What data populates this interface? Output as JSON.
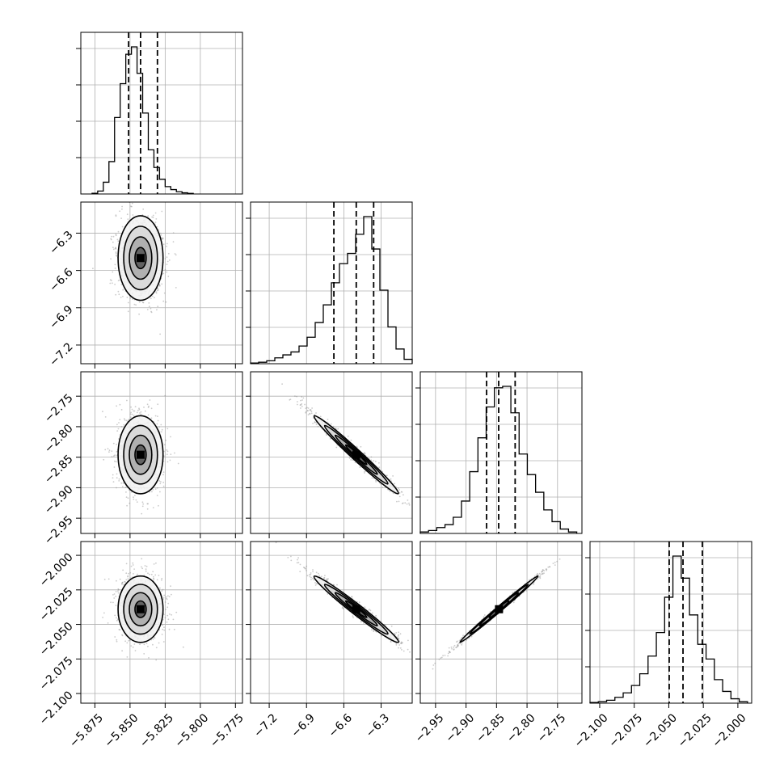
{
  "chart_data": {
    "type": "corner",
    "grid": true,
    "colors": {
      "line": "#000000",
      "grid": "#b0b0b0",
      "scatter": "#8c8c8c",
      "background": "#ffffff"
    },
    "title": "",
    "variables": [
      {
        "range": [
          -5.885,
          -5.77
        ],
        "ticks": [
          -5.875,
          -5.85,
          -5.825,
          -5.8,
          -5.775
        ],
        "tick_labels": [
          "−5.875",
          "−5.850",
          "−5.825",
          "−5.800",
          "−5.775"
        ],
        "quantiles": [
          -5.851,
          -5.8425,
          -5.8305
        ],
        "hist": {
          "edges": [
            -5.877,
            -5.873,
            -5.869,
            -5.865,
            -5.861,
            -5.857,
            -5.853,
            -5.849,
            -5.845,
            -5.841,
            -5.837,
            -5.833,
            -5.829,
            -5.825,
            -5.821,
            -5.817,
            -5.813,
            -5.809,
            -5.805
          ],
          "heights": [
            0.005,
            0.02,
            0.08,
            0.22,
            0.52,
            0.75,
            0.95,
            1.0,
            0.82,
            0.55,
            0.3,
            0.18,
            0.1,
            0.05,
            0.03,
            0.015,
            0.008,
            0.004
          ]
        }
      },
      {
        "range": [
          -7.35,
          -6.05
        ],
        "ticks": [
          -7.2,
          -6.9,
          -6.6,
          -6.3
        ],
        "tick_labels": [
          "−7.2",
          "−6.9",
          "−6.6",
          "−6.3"
        ],
        "quantiles": [
          -6.68,
          -6.5,
          -6.36
        ],
        "hist": {
          "edges": [
            -7.35,
            -7.285,
            -7.22,
            -7.155,
            -7.09,
            -7.025,
            -6.96,
            -6.895,
            -6.83,
            -6.765,
            -6.7,
            -6.635,
            -6.57,
            -6.505,
            -6.44,
            -6.375,
            -6.31,
            -6.245,
            -6.18,
            -6.115,
            -6.05
          ],
          "heights": [
            0.005,
            0.01,
            0.02,
            0.04,
            0.06,
            0.08,
            0.12,
            0.18,
            0.28,
            0.4,
            0.55,
            0.68,
            0.75,
            0.88,
            1.0,
            0.78,
            0.5,
            0.25,
            0.1,
            0.03
          ]
        }
      },
      {
        "range": [
          -2.975,
          -2.71
        ],
        "ticks": [
          -2.95,
          -2.9,
          -2.85,
          -2.8,
          -2.75
        ],
        "tick_labels": [
          "−2.95",
          "−2.90",
          "−2.85",
          "−2.80",
          "−2.75"
        ],
        "quantiles": [
          -2.8663,
          -2.8465,
          -2.8195
        ],
        "hist": {
          "edges": [
            -2.975,
            -2.9615,
            -2.948,
            -2.9345,
            -2.921,
            -2.9075,
            -2.894,
            -2.8805,
            -2.867,
            -2.8535,
            -2.84,
            -2.8265,
            -2.813,
            -2.7995,
            -2.786,
            -2.7725,
            -2.759,
            -2.7455,
            -2.732,
            -2.7185
          ],
          "heights": [
            0.01,
            0.02,
            0.04,
            0.06,
            0.11,
            0.22,
            0.42,
            0.65,
            0.86,
            0.99,
            1.0,
            0.82,
            0.54,
            0.4,
            0.28,
            0.16,
            0.08,
            0.03,
            0.01
          ]
        }
      },
      {
        "range": [
          -2.107,
          -1.99
        ],
        "ticks": [
          -2.1,
          -2.075,
          -2.05,
          -2.025,
          -2.0
        ],
        "tick_labels": [
          "−2.100",
          "−2.075",
          "−2.050",
          "−2.025",
          "−2.000"
        ],
        "quantiles": [
          -2.0497,
          -2.0397,
          -2.0257
        ],
        "hist": {
          "edges": [
            -2.107,
            -2.101,
            -2.095,
            -2.089,
            -2.083,
            -2.077,
            -2.071,
            -2.065,
            -2.059,
            -2.053,
            -2.047,
            -2.041,
            -2.035,
            -2.029,
            -2.023,
            -2.017,
            -2.011,
            -2.005,
            -1.999,
            -1.993
          ],
          "heights": [
            0.005,
            0.01,
            0.02,
            0.04,
            0.07,
            0.12,
            0.2,
            0.32,
            0.48,
            0.72,
            1.0,
            0.85,
            0.6,
            0.4,
            0.3,
            0.16,
            0.08,
            0.03,
            0.01
          ]
        }
      }
    ],
    "pairs": [
      {
        "x": 0,
        "y": 1,
        "mean": [
          -5.8425,
          -6.5
        ],
        "sd": [
          0.008,
          0.17
        ],
        "rho": 0.0
      },
      {
        "x": 0,
        "y": 2,
        "mean": [
          -5.8425,
          -2.846
        ],
        "sd": [
          0.008,
          0.032
        ],
        "rho": 0.0
      },
      {
        "x": 0,
        "y": 3,
        "mean": [
          -5.8425,
          -2.039
        ],
        "sd": [
          0.008,
          0.012
        ],
        "rho": 0.0
      },
      {
        "x": 1,
        "y": 2,
        "mean": [
          -6.5,
          -2.846
        ],
        "sd": [
          0.17,
          0.032
        ],
        "rho": -0.985
      },
      {
        "x": 1,
        "y": 3,
        "mean": [
          -6.5,
          -2.039
        ],
        "sd": [
          0.17,
          0.012
        ],
        "rho": -0.98
      },
      {
        "x": 2,
        "y": 3,
        "mean": [
          -2.846,
          -2.039
        ],
        "sd": [
          0.032,
          0.012
        ],
        "rho": 0.995
      }
    ]
  }
}
